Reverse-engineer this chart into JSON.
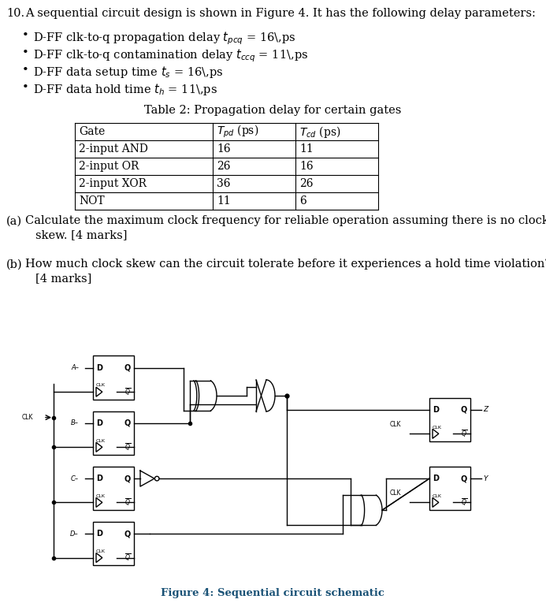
{
  "bg_color": "#ffffff",
  "text_color": "#000000",
  "accent_color": "#1a5276",
  "title_num": "10.",
  "title_text": " A sequential circuit design is shown in Figure 4. It has the following delay parameters:",
  "bullets": [
    [
      "D-FF clk-to-q propagation delay ",
      "t_pcq",
      " = 16 ps"
    ],
    [
      "D-FF clk-to-q contamination delay ",
      "t_ccq",
      " = 11 ps"
    ],
    [
      "D-FF data setup time ",
      "t_s",
      " = 16 ps"
    ],
    [
      "D-FF data hold time ",
      "t_h",
      " = 11 ps"
    ]
  ],
  "table_title": "Table 2: Propagation delay for certain gates",
  "table_headers": [
    "Gate",
    "T_pd (ps)",
    "T_cd (ps)"
  ],
  "table_rows": [
    [
      "2-input AND",
      "16",
      "11"
    ],
    [
      "2-input OR",
      "26",
      "16"
    ],
    [
      "2-input XOR",
      "36",
      "26"
    ],
    [
      "NOT",
      "11",
      "6"
    ]
  ],
  "part_a_label": "(a)",
  "part_a_text": " Calculate the maximum clock frequency for reliable operation assuming there is no clock",
  "part_a_cont": "skew. [4 marks]",
  "part_b_label": "(b)",
  "part_b_text": " How much clock skew can the circuit tolerate before it experiences a hold time violation?",
  "part_b_cont": "[4 marks]",
  "fig_caption": "Figure 4: Sequential circuit schematic"
}
